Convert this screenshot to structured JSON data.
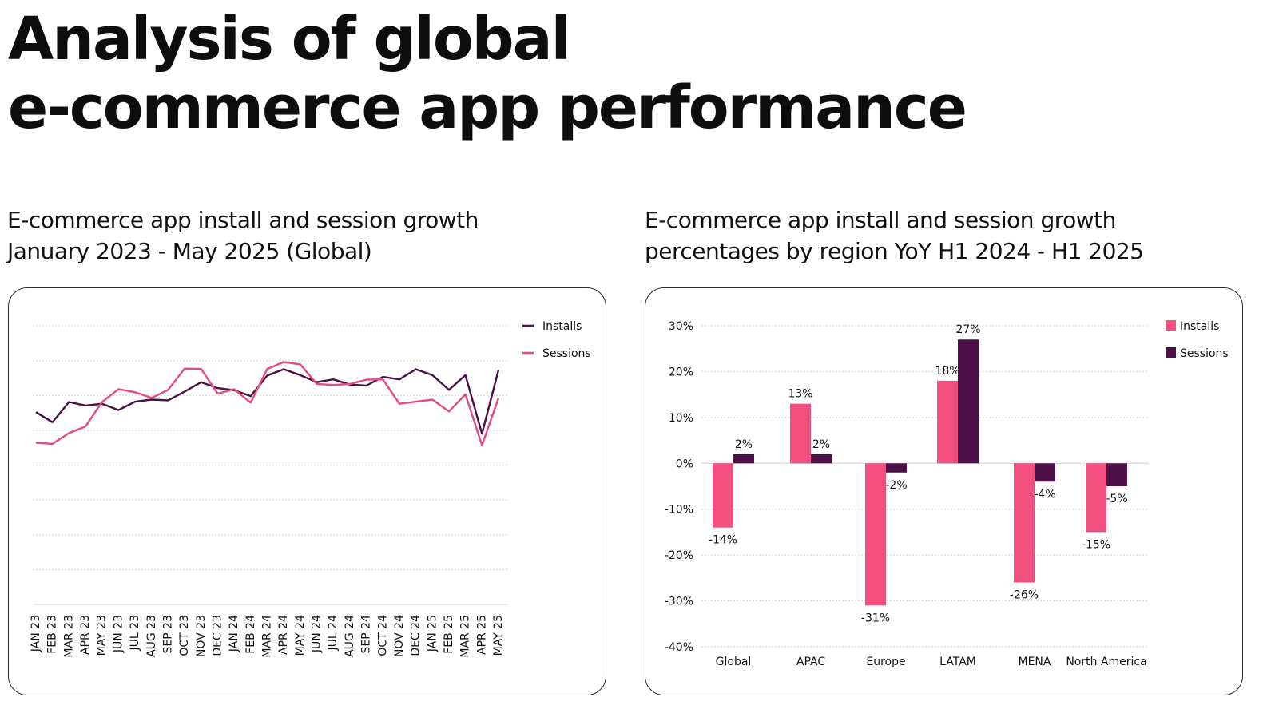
{
  "page": {
    "title_line1": "Analysis of global",
    "title_line2": "e-commerce app performance"
  },
  "colors": {
    "installs_line": "#4a1046",
    "sessions_line": "#e54b7c",
    "installs_bar": "#f14f80",
    "sessions_bar": "#4d0f48"
  },
  "chart_data": [
    {
      "type": "line",
      "title_line1": "E-commerce app install and session growth",
      "title_line2": "January 2023 - May 2025 (Global)",
      "x": [
        "JAN 23",
        "FEB 23",
        "MAR 23",
        "APR 23",
        "MAY 23",
        "JUN 23",
        "JUL 23",
        "AUG 23",
        "SEP 23",
        "OCT 23",
        "NOV 23",
        "DEC 23",
        "JAN 24",
        "FEB 24",
        "MAR 24",
        "APR 24",
        "MAY 24",
        "JUN 24",
        "JUL 24",
        "AUG 24",
        "SEP 24",
        "OCT 24",
        "NOV 24",
        "DEC 24",
        "JAN 25",
        "FEB 25",
        "MAR 25",
        "APR 25",
        "MAY 25"
      ],
      "series": [
        {
          "name": "Installs",
          "values": [
            55.2,
            52.3,
            58.1,
            57.1,
            57.6,
            55.8,
            58.2,
            58.8,
            58.6,
            61.1,
            63.8,
            62.1,
            61.5,
            59.8,
            65.7,
            67.5,
            65.8,
            63.8,
            64.6,
            63.1,
            62.8,
            65.3,
            64.6,
            67.5,
            65.8,
            61.6,
            65.8,
            49.0,
            67.3
          ]
        },
        {
          "name": "Sessions",
          "values": [
            46.4,
            46.1,
            49.2,
            51.1,
            58.1,
            61.8,
            60.9,
            59.3,
            61.6,
            67.7,
            67.6,
            60.5,
            61.8,
            57.9,
            67.6,
            69.6,
            68.9,
            63.3,
            63.0,
            63.3,
            64.5,
            64.6,
            57.6,
            58.2,
            58.8,
            55.4,
            60.3,
            45.7,
            59.2
          ]
        }
      ],
      "ylim": [
        0,
        80
      ],
      "grid": true,
      "legend": "top-right"
    },
    {
      "type": "bar",
      "title_line1": "E-commerce app install and session growth",
      "title_line2": "percentages by region YoY H1 2024 - H1 2025",
      "categories": [
        "Global",
        "APAC",
        "Europe",
        "LATAM",
        "MENA",
        "North America"
      ],
      "series": [
        {
          "name": "Installs",
          "values": [
            -14,
            13,
            -31,
            18,
            -26,
            -15
          ]
        },
        {
          "name": "Sessions",
          "values": [
            2,
            2,
            -2,
            27,
            -4,
            -5
          ]
        }
      ],
      "yticks": [
        "30%",
        "20%",
        "10%",
        "0%",
        "-10%",
        "-20%",
        "-30%",
        "-40%"
      ],
      "ylim": [
        -40,
        30
      ],
      "grid": true,
      "legend": "top-right"
    }
  ]
}
